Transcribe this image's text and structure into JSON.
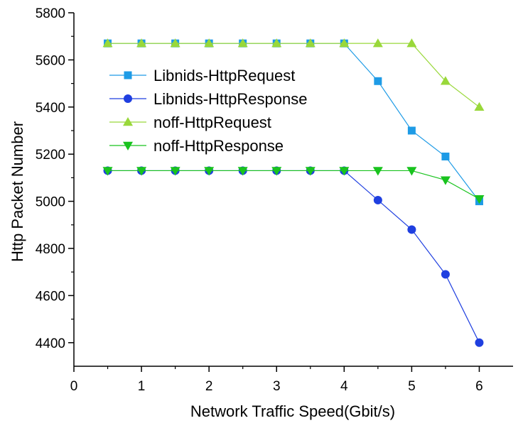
{
  "chart_data": {
    "type": "line",
    "title": "",
    "xlabel": "Network Traffic Speed(Gbit/s)",
    "ylabel": "Http Packet Number",
    "xlim": [
      0,
      6.5
    ],
    "ylim": [
      4300,
      5800
    ],
    "xticks": [
      0,
      1,
      2,
      3,
      4,
      5,
      6
    ],
    "yticks": [
      4400,
      4600,
      4800,
      5000,
      5200,
      5400,
      5600,
      5800
    ],
    "grid": false,
    "legend_position": "upper-left",
    "x": [
      0.5,
      1.0,
      1.5,
      2.0,
      2.5,
      3.0,
      3.5,
      4.0,
      4.5,
      5.0,
      5.5,
      6.0
    ],
    "series": [
      {
        "name": "Libnids-HttpRequest",
        "color": "#1e9be6",
        "marker": "square",
        "values": [
          5670,
          5670,
          5670,
          5670,
          5670,
          5670,
          5670,
          5670,
          5510,
          5300,
          5190,
          5000
        ]
      },
      {
        "name": "Libnids-HttpResponse",
        "color": "#1f3fe0",
        "marker": "circle",
        "values": [
          5130,
          5130,
          5130,
          5130,
          5130,
          5130,
          5130,
          5130,
          5005,
          4880,
          4690,
          4400
        ]
      },
      {
        "name": "noff-HttpRequest",
        "color": "#99d83a",
        "marker": "triangle-up",
        "values": [
          5670,
          5670,
          5670,
          5670,
          5670,
          5670,
          5670,
          5670,
          5670,
          5670,
          5510,
          5400
        ]
      },
      {
        "name": "noff-HttpResponse",
        "color": "#19c31e",
        "marker": "triangle-down",
        "values": [
          5130,
          5130,
          5130,
          5130,
          5130,
          5130,
          5130,
          5130,
          5130,
          5130,
          5090,
          5010
        ]
      }
    ]
  }
}
